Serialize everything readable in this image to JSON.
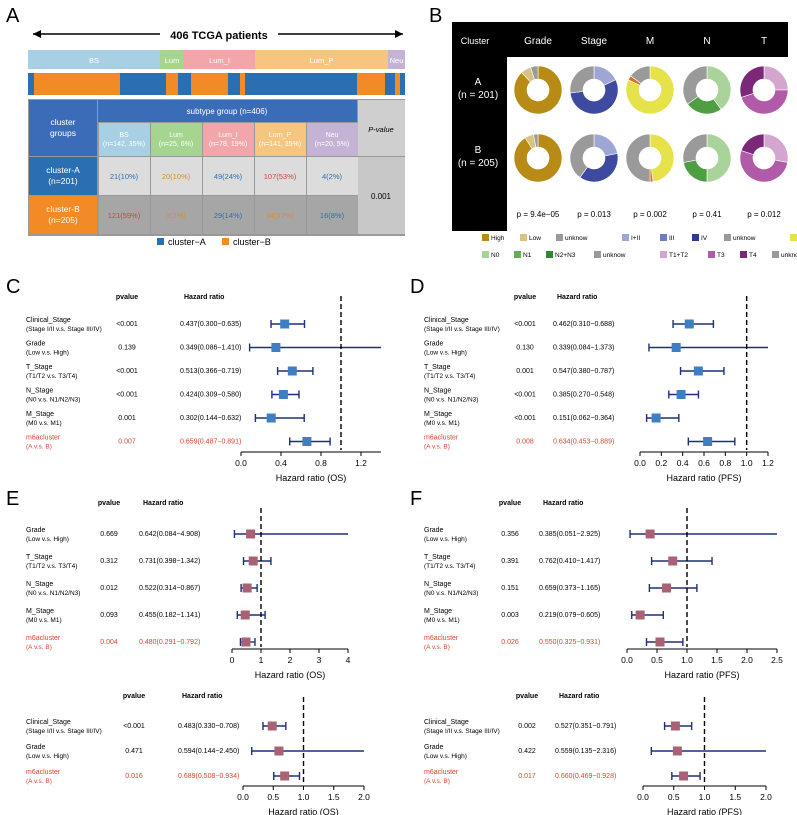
{
  "chart_data": [
    {
      "type": "table",
      "panel": "A",
      "title": "406 TCGA patients",
      "subtype_bar": [
        "BS",
        "Lum",
        "Lum_I",
        "Lum_P",
        "Neu"
      ],
      "row_header": "cluster\ngroups",
      "group_header": "subtype group (n=406)",
      "columns": [
        "BS\n(n=142, 35%)",
        "Lum\n(n=25, 6%)",
        "Lum_I\n(n=78, 19%)",
        "Lum_P\n(n=141, 35%)",
        "Neu\n(n=20, 5%)"
      ],
      "pvalue_header": "P-value",
      "rows": [
        {
          "label": "cluster-A\n(n=201)",
          "cells": [
            "21(10%)",
            "20(10%)",
            "49(24%)",
            "107(53%)",
            "4(2%)"
          ]
        },
        {
          "label": "cluster-B\n(n=205)",
          "cells": [
            "121(59%)",
            "5(2%)",
            "29(14%)",
            "34(17%)",
            "16(8%)"
          ]
        }
      ],
      "pvalue": "0.001",
      "legend": [
        "cluster−A",
        "cluster−B"
      ],
      "colors": {
        "cluster_A": "#2b6fb3",
        "cluster_B": "#f28b25"
      }
    },
    {
      "type": "pie",
      "panel": "B",
      "header": [
        "Cluster",
        "Grade",
        "Stage",
        "M",
        "N",
        "T"
      ],
      "rows": [
        {
          "label": "A\n(n = 201)",
          "donuts": [
            [
              88,
              7,
              5
            ],
            [
              18,
              55,
              27
            ],
            [
              82,
              3,
              15
            ],
            [
              40,
              25,
              35
            ],
            [
              25,
              45,
              30
            ]
          ]
        },
        {
          "label": "B\n(n = 205)",
          "donuts": [
            [
              91,
              6,
              3
            ],
            [
              22,
              38,
              40
            ],
            [
              48,
              2,
              50
            ],
            [
              50,
              22,
              28
            ],
            [
              28,
              52,
              20
            ]
          ]
        }
      ],
      "pvalues": [
        "p = 9.4e−05",
        "p = 0.013",
        "p = 0.002",
        "p = 0.41",
        "p = 0.012"
      ],
      "legend_rows": [
        [
          [
            "High",
            "#b88a16"
          ],
          [
            "Low",
            "#d8c287"
          ],
          [
            "unknow",
            "#9a9a9a"
          ],
          [
            "I+II",
            "#9ea6d4"
          ],
          [
            "III",
            "#6f7cc0"
          ],
          [
            "IV",
            "#2e3c8e"
          ],
          [
            "unknow",
            "#9a9a9a"
          ],
          [
            "M0",
            "#e6e34a"
          ],
          [
            "M1",
            "#d56e2c"
          ],
          [
            "unknow",
            "#9a9a9a"
          ]
        ],
        [
          [
            "N0",
            "#a9d39a"
          ],
          [
            "N1",
            "#62ad52"
          ],
          [
            "N2+N3",
            "#2d8a34"
          ],
          [
            "unknow",
            "#9a9a9a"
          ],
          [
            "T1+T2",
            "#d4a6cf"
          ],
          [
            "T3",
            "#b05aa8"
          ],
          [
            "T4",
            "#7a2877"
          ],
          [
            "unknow",
            "#9a9a9a"
          ]
        ]
      ]
    },
    {
      "type": "forest",
      "panel": "C",
      "xlabel": "Hazard ratio (OS)",
      "col_headers": [
        "pvalue",
        "Hazard ratio"
      ],
      "xlim": [
        0.0,
        1.4
      ],
      "ticks": [
        "0.0",
        "0.4",
        "0.8",
        "1.2"
      ],
      "rows": [
        {
          "label": "Clinical_Stage",
          "sub": "(Stage I/II v.s. Stage III/IV)",
          "p": "<0.001",
          "hr_text": "0.437(0.300−0.635)",
          "hr": 0.437,
          "lo": 0.3,
          "hi": 0.635
        },
        {
          "label": "Grade",
          "sub": "(Low v.s. High)",
          "p": "0.139",
          "hr_text": "0.349(0.086−1.410)",
          "hr": 0.349,
          "lo": 0.086,
          "hi": 1.41
        },
        {
          "label": "T_Stage",
          "sub": "(T1/T2 v.s. T3/T4)",
          "p": "<0.001",
          "hr_text": "0.513(0.366−0.719)",
          "hr": 0.513,
          "lo": 0.366,
          "hi": 0.719
        },
        {
          "label": "N_Stage",
          "sub": "(N0 v.s. N1/N2/N3)",
          "p": "<0.001",
          "hr_text": "0.424(0.309−0.580)",
          "hr": 0.424,
          "lo": 0.309,
          "hi": 0.58
        },
        {
          "label": "M_Stage",
          "sub": "(M0 v.s. M1)",
          "p": "0.001",
          "hr_text": "0.302(0.144−0.632)",
          "hr": 0.302,
          "lo": 0.144,
          "hi": 0.632
        },
        {
          "label": "m6acluster",
          "sub": "(A v.s. B)",
          "p": "0.007",
          "hr_text": "0.659(0.487−0.891)",
          "hr": 0.659,
          "lo": 0.487,
          "hi": 0.891,
          "highlight": true
        }
      ]
    },
    {
      "type": "forest",
      "panel": "D",
      "xlabel": "Hazard ratio (PFS)",
      "col_headers": [
        "pvalue",
        "Hazard ratio"
      ],
      "xlim": [
        0.0,
        1.2
      ],
      "ticks": [
        "0.0",
        "0.2",
        "0.4",
        "0.6",
        "0.8",
        "1.0",
        "1.2"
      ],
      "rows": [
        {
          "label": "Clinical_Stage",
          "sub": "(Stage I/II v.s. Stage III/IV)",
          "p": "<0.001",
          "hr_text": "0.462(0.310−0.688)",
          "hr": 0.462,
          "lo": 0.31,
          "hi": 0.688
        },
        {
          "label": "Grade",
          "sub": "(Low v.s. High)",
          "p": "0.130",
          "hr_text": "0.339(0.084−1.373)",
          "hr": 0.339,
          "lo": 0.084,
          "hi": 1.373
        },
        {
          "label": "T_Stage",
          "sub": "(T1/T2 v.s. T3/T4)",
          "p": "0.001",
          "hr_text": "0.547(0.380−0.787)",
          "hr": 0.547,
          "lo": 0.38,
          "hi": 0.787
        },
        {
          "label": "N_Stage",
          "sub": "(N0 v.s. N1/N2/N3)",
          "p": "<0.001",
          "hr_text": "0.385(0.270−0.548)",
          "hr": 0.385,
          "lo": 0.27,
          "hi": 0.548
        },
        {
          "label": "M_Stage",
          "sub": "(M0 v.s. M1)",
          "p": "<0.001",
          "hr_text": "0.151(0.062−0.364)",
          "hr": 0.151,
          "lo": 0.062,
          "hi": 0.364
        },
        {
          "label": "m6acluster",
          "sub": "(A v.s. B)",
          "p": "0.008",
          "hr_text": "0.634(0.453−0.889)",
          "hr": 0.634,
          "lo": 0.453,
          "hi": 0.889,
          "highlight": true
        }
      ]
    },
    {
      "type": "forest",
      "panel": "E",
      "xlabel": "Hazard ratio (OS)",
      "col_headers": [
        "pvalue",
        "Hazard ratio"
      ],
      "xlim": [
        0,
        4
      ],
      "ticks": [
        "0",
        "1",
        "2",
        "3",
        "4"
      ],
      "rows": [
        {
          "label": "Grade",
          "sub": "(Low v.s. High)",
          "p": "0.669",
          "hr_text": "0.642(0.084−4.908)",
          "hr": 0.642,
          "lo": 0.084,
          "hi": 4.908
        },
        {
          "label": "T_Stage",
          "sub": "(T1/T2 v.s. T3/T4)",
          "p": "0.312",
          "hr_text": "0.731(0.398−1.342)",
          "hr": 0.731,
          "lo": 0.398,
          "hi": 1.342
        },
        {
          "label": "N_Stage",
          "sub": "(N0 v.s. N1/N2/N3)",
          "p": "0.012",
          "hr_text": "0.522(0.314−0.867)",
          "hr": 0.522,
          "lo": 0.314,
          "hi": 0.867
        },
        {
          "label": "M_Stage",
          "sub": "(M0 v.s. M1)",
          "p": "0.093",
          "hr_text": "0.455(0.182−1.141)",
          "hr": 0.455,
          "lo": 0.182,
          "hi": 1.141
        },
        {
          "label": "m6acluster",
          "sub": "(A v.s. B)",
          "p": "0.004",
          "hr_text": "0.480(0.291−0.792)",
          "hr": 0.48,
          "lo": 0.291,
          "hi": 0.792,
          "highlight": true
        }
      ]
    },
    {
      "type": "forest",
      "panel": "F",
      "xlabel": "Hazard ratio (PFS)",
      "col_headers": [
        "pvalue",
        "Hazard ratio"
      ],
      "xlim": [
        0.0,
        2.5
      ],
      "ticks": [
        "0.0",
        "0.5",
        "1.0",
        "1.5",
        "2.0",
        "2.5"
      ],
      "rows": [
        {
          "label": "Grade",
          "sub": "(Low v.s. High)",
          "p": "0.356",
          "hr_text": "0.385(0.051−2.925)",
          "hr": 0.385,
          "lo": 0.051,
          "hi": 2.925
        },
        {
          "label": "T_Stage",
          "sub": "(T1/T2 v.s. T3/T4)",
          "p": "0.391",
          "hr_text": "0.762(0.410−1.417)",
          "hr": 0.762,
          "lo": 0.41,
          "hi": 1.417
        },
        {
          "label": "N_Stage",
          "sub": "(N0 v.s. N1/N2/N3)",
          "p": "0.151",
          "hr_text": "0.659(0.373−1.165)",
          "hr": 0.659,
          "lo": 0.373,
          "hi": 1.165
        },
        {
          "label": "M_Stage",
          "sub": "(M0 v.s. M1)",
          "p": "0.003",
          "hr_text": "0.219(0.079−0.605)",
          "hr": 0.219,
          "lo": 0.079,
          "hi": 0.605
        },
        {
          "label": "m6acluster",
          "sub": "(A v.s. B)",
          "p": "0.026",
          "hr_text": "0.550(0.325−0.931)",
          "hr": 0.55,
          "lo": 0.325,
          "hi": 0.931,
          "highlight": true
        }
      ]
    },
    {
      "type": "forest",
      "panel": "E2",
      "xlabel": "Hazard ratio (OS)",
      "col_headers": [
        "pvalue",
        "Hazard ratio"
      ],
      "xlim": [
        0.0,
        2.0
      ],
      "ticks": [
        "0.0",
        "0.5",
        "1.0",
        "1.5",
        "2.0"
      ],
      "rows": [
        {
          "label": "Clinical_Stage",
          "sub": "(Stage I/II v.s. Stage III/IV)",
          "p": "<0.001",
          "hr_text": "0.483(0.330−0.708)",
          "hr": 0.483,
          "lo": 0.33,
          "hi": 0.708
        },
        {
          "label": "Grade",
          "sub": "(Low v.s. High)",
          "p": "0.471",
          "hr_text": "0.594(0.144−2.450)",
          "hr": 0.594,
          "lo": 0.144,
          "hi": 2.45
        },
        {
          "label": "m6acluster",
          "sub": "(A v.s. B)",
          "p": "0.016",
          "hr_text": "0.689(0.508−0.934)",
          "hr": 0.689,
          "lo": 0.508,
          "hi": 0.934,
          "highlight": true
        }
      ]
    },
    {
      "type": "forest",
      "panel": "F2",
      "xlabel": "Hazard ratio (PFS)",
      "col_headers": [
        "pvalue",
        "Hazard ratio"
      ],
      "xlim": [
        0.0,
        2.0
      ],
      "ticks": [
        "0.0",
        "0.5",
        "1.0",
        "1.5",
        "2.0"
      ],
      "rows": [
        {
          "label": "Clinical_Stage",
          "sub": "(Stage I/II v.s. Stage III/IV)",
          "p": "0.002",
          "hr_text": "0.527(0.351−0.791)",
          "hr": 0.527,
          "lo": 0.351,
          "hi": 0.791
        },
        {
          "label": "Grade",
          "sub": "(Low v.s. High)",
          "p": "0.422",
          "hr_text": "0.559(0.135−2.316)",
          "hr": 0.559,
          "lo": 0.135,
          "hi": 2.316
        },
        {
          "label": "m6acluster",
          "sub": "(A v.s. B)",
          "p": "0.017",
          "hr_text": "0.660(0.469−0.928)",
          "hr": 0.66,
          "lo": 0.469,
          "hi": 0.928,
          "highlight": true
        }
      ]
    }
  ]
}
